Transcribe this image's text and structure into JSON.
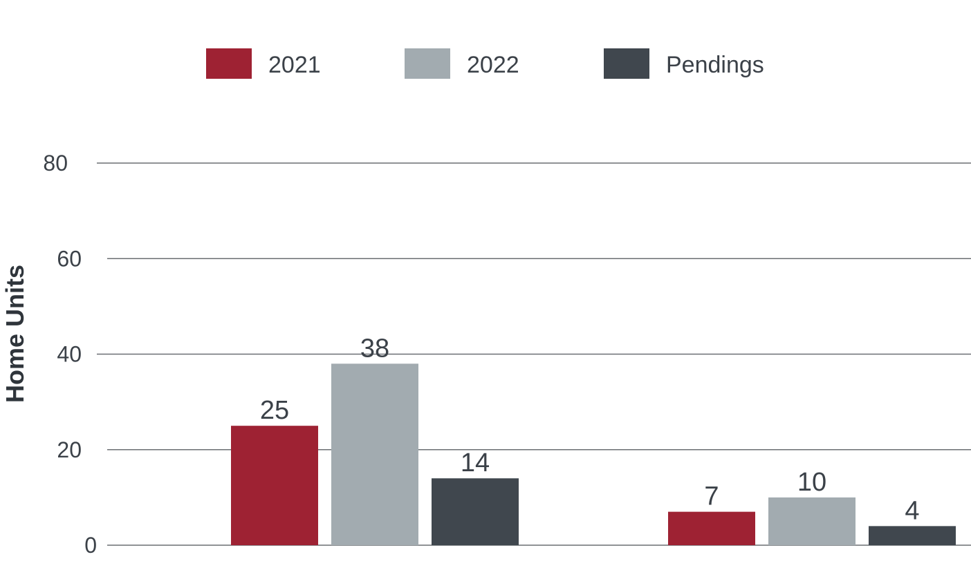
{
  "chart_data": {
    "type": "bar",
    "categories": [
      "",
      ""
    ],
    "series": [
      {
        "name": "2021",
        "values": [
          25,
          7
        ],
        "color": "#9e2233"
      },
      {
        "name": "2022",
        "values": [
          38,
          10
        ],
        "color": "#a2abb0"
      },
      {
        "name": "Pendings",
        "values": [
          14,
          4
        ],
        "color": "#40474e"
      }
    ],
    "ylabel": "Home Units",
    "ylim": [
      0,
      80
    ],
    "yticks": [
      0,
      20,
      40,
      60,
      80
    ],
    "grid": true,
    "legend_position": "top"
  }
}
